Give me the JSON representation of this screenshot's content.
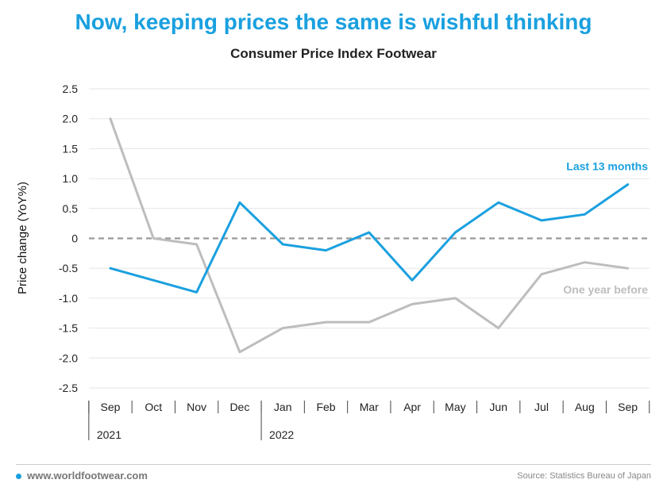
{
  "headline": "Now, keeping prices the same is wishful thinking",
  "chart_data": {
    "type": "line",
    "title": "Consumer Price Index Footwear",
    "xlabel": "",
    "ylabel": "Price change (YoY%)",
    "categories": [
      "Sep",
      "Oct",
      "Nov",
      "Dec",
      "Jan",
      "Feb",
      "Mar",
      "Apr",
      "May",
      "Jun",
      "Jul",
      "Aug",
      "Sep"
    ],
    "years": [
      {
        "label": "2021",
        "start_index": 0
      },
      {
        "label": "2022",
        "start_index": 4
      }
    ],
    "yticks": [
      "2.5",
      "2.0",
      "1.5",
      "1.0",
      "0.5",
      "0",
      "-0.5",
      "-1.0",
      "-1.5",
      "-2.0",
      "-2.5"
    ],
    "ylim": [
      -2.5,
      2.5
    ],
    "grid": true,
    "zero_line": "dashed",
    "series": [
      {
        "name": "Last 13 months",
        "color": "#1aa0df",
        "values": [
          -0.5,
          -0.7,
          -0.9,
          0.6,
          -0.1,
          -0.2,
          0.1,
          -0.7,
          0.1,
          0.6,
          0.3,
          0.4,
          0.9
        ]
      },
      {
        "name": "One year before",
        "color": "#bdbdbd",
        "values": [
          2.0,
          0.0,
          -0.1,
          -1.9,
          -1.5,
          -1.4,
          -1.4,
          -1.1,
          -1.0,
          -1.5,
          -0.6,
          -0.4,
          -0.5
        ]
      }
    ]
  },
  "footer": {
    "site": "www.worldfootwear.com",
    "source": "Source: Statistics Bureau of Japan"
  }
}
